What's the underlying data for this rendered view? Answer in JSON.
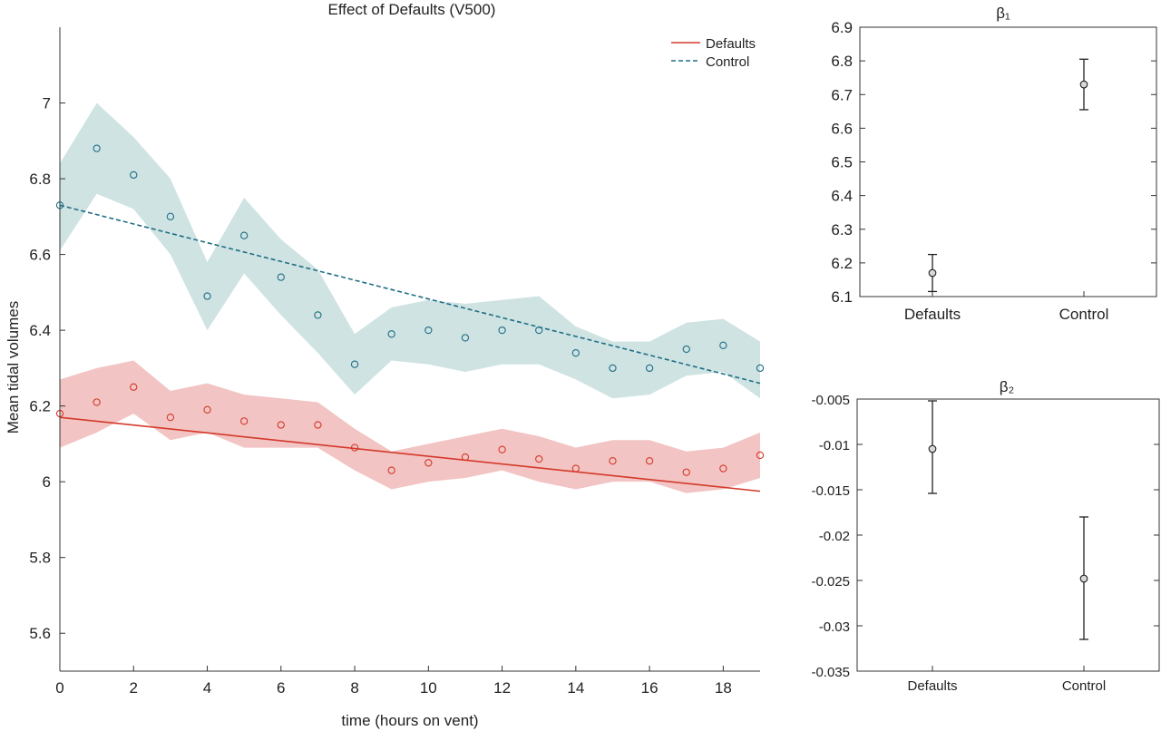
{
  "chart_data": [
    {
      "type": "line",
      "title": "Effect of Defaults (V500)",
      "xlabel": "time (hours on vent)",
      "ylabel": "Mean tidal volumes",
      "xlim": [
        0,
        19
      ],
      "ylim": [
        5.5,
        7.2
      ],
      "x_ticks": [
        "0",
        "2",
        "4",
        "6",
        "8",
        "10",
        "12",
        "14",
        "16",
        "18"
      ],
      "y_ticks": [
        "5.6",
        "5.8",
        "6",
        "6.2",
        "6.4",
        "6.6",
        "6.8",
        "7"
      ],
      "legend_position": "top-right",
      "x": [
        0,
        1,
        2,
        3,
        4,
        5,
        6,
        7,
        8,
        9,
        10,
        11,
        12,
        13,
        14,
        15,
        16,
        17,
        18,
        19
      ],
      "series": [
        {
          "name": "Defaults",
          "color": "#d4392b",
          "band_color": "#f2c4c3",
          "line_style": "solid",
          "points": [
            6.18,
            6.21,
            6.25,
            6.17,
            6.19,
            6.16,
            6.15,
            6.15,
            6.09,
            6.03,
            6.05,
            6.065,
            6.085,
            6.06,
            6.035,
            6.055,
            6.055,
            6.025,
            6.035,
            6.07
          ],
          "band_upper": [
            6.27,
            6.3,
            6.32,
            6.24,
            6.26,
            6.23,
            6.22,
            6.21,
            6.14,
            6.08,
            6.1,
            6.12,
            6.14,
            6.12,
            6.09,
            6.11,
            6.11,
            6.08,
            6.09,
            6.13
          ],
          "band_lower": [
            6.09,
            6.13,
            6.18,
            6.11,
            6.13,
            6.09,
            6.09,
            6.09,
            6.03,
            5.98,
            6.0,
            6.01,
            6.03,
            6.0,
            5.98,
            6.0,
            6.0,
            5.97,
            5.98,
            6.01
          ],
          "fit": [
            6.17,
            5.975
          ]
        },
        {
          "name": "Control",
          "color": "#1e6e85",
          "band_color": "#cfe3e3",
          "line_style": "dashed",
          "points": [
            6.73,
            6.88,
            6.81,
            6.7,
            6.49,
            6.65,
            6.54,
            6.44,
            6.31,
            6.39,
            6.4,
            6.38,
            6.4,
            6.4,
            6.34,
            6.3,
            6.3,
            6.35,
            6.36,
            6.3
          ],
          "band_upper": [
            6.84,
            7.0,
            6.91,
            6.8,
            6.58,
            6.75,
            6.64,
            6.56,
            6.39,
            6.46,
            6.48,
            6.47,
            6.48,
            6.49,
            6.41,
            6.37,
            6.37,
            6.42,
            6.43,
            6.37
          ],
          "band_lower": [
            6.61,
            6.76,
            6.72,
            6.6,
            6.4,
            6.55,
            6.44,
            6.34,
            6.23,
            6.32,
            6.31,
            6.29,
            6.31,
            6.31,
            6.27,
            6.22,
            6.23,
            6.28,
            6.29,
            6.22
          ],
          "fit": [
            6.73,
            6.26
          ]
        }
      ]
    },
    {
      "type": "scatter",
      "title": "β₁",
      "categories": [
        "Defaults",
        "Control"
      ],
      "values": [
        6.17,
        6.73
      ],
      "error_low": [
        6.115,
        6.655
      ],
      "error_high": [
        6.225,
        6.805
      ],
      "ylim": [
        6.1,
        6.9
      ],
      "y_ticks": [
        "6.1",
        "6.2",
        "6.3",
        "6.4",
        "6.5",
        "6.6",
        "6.7",
        "6.8",
        "6.9"
      ]
    },
    {
      "type": "scatter",
      "title": "β₂",
      "categories": [
        "Defaults",
        "Control"
      ],
      "values": [
        -0.0105,
        -0.0248
      ],
      "error_low": [
        -0.0154,
        -0.0315
      ],
      "error_high": [
        -0.0052,
        -0.018
      ],
      "ylim": [
        -0.035,
        -0.005
      ],
      "y_ticks": [
        "-0.005",
        "-0.01",
        "-0.015",
        "-0.02",
        "-0.025",
        "-0.03",
        "-0.035"
      ]
    }
  ]
}
